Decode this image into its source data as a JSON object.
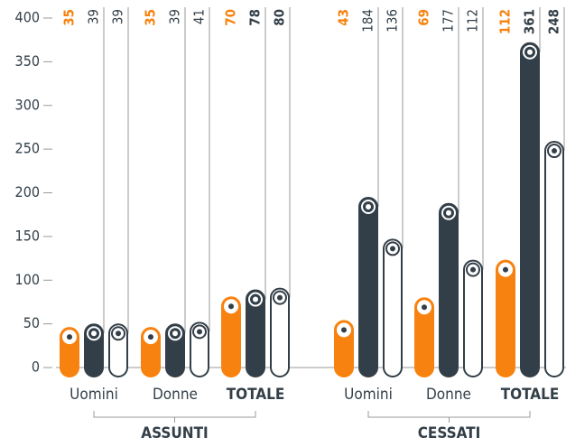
{
  "chart_data": {
    "type": "bar",
    "categories": [
      "Uomini",
      "Donne",
      "TOTALE",
      "Uomini",
      "Donne",
      "TOTALE"
    ],
    "groups": [
      "ASSUNTI",
      "CESSATI"
    ],
    "series": [
      {
        "color": "#f7820f",
        "values": [
          35,
          35,
          70,
          43,
          69,
          112
        ]
      },
      {
        "color": "#333f48",
        "values": [
          39,
          39,
          78,
          184,
          177,
          361
        ]
      },
      {
        "color": "#ffffff",
        "values": [
          39,
          41,
          80,
          136,
          112,
          248
        ]
      }
    ],
    "ylim": [
      0,
      400
    ],
    "yticks": [
      0,
      50,
      100,
      150,
      200,
      250,
      300,
      350,
      400
    ]
  }
}
